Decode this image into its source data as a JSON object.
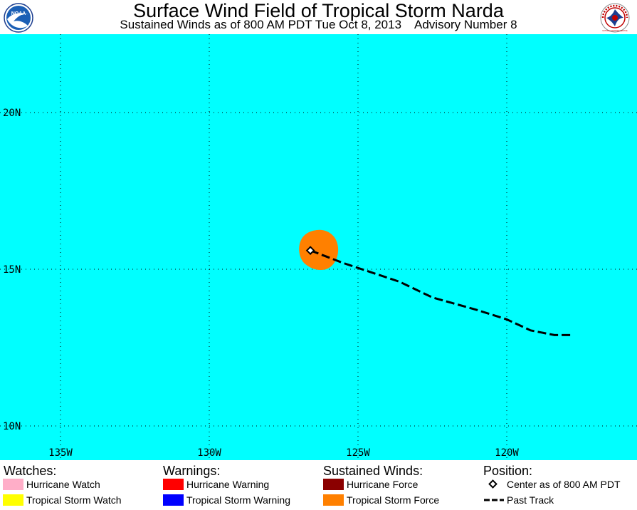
{
  "header": {
    "title": "Surface Wind Field of Tropical Storm Narda",
    "subtitle": "Sustained Winds as of 800 AM PDT Tue Oct 8, 2013    Advisory Number 8",
    "logo_left": "NOAA",
    "logo_right": "NATIONAL WEATHER SERVICE"
  },
  "map": {
    "ocean_color": "#00ffff",
    "storm_color": "#ff8000",
    "lon_labels": [
      "135W",
      "130W",
      "125W",
      "120W"
    ],
    "lat_labels": [
      "20N",
      "15N",
      "10N"
    ],
    "center": {
      "lon": -126.6,
      "lat": 15.6
    },
    "track": [
      {
        "lon": -126.6,
        "lat": 15.6
      },
      {
        "lon": -125.5,
        "lat": 15.2
      },
      {
        "lon": -123.6,
        "lat": 14.6
      },
      {
        "lon": -122.5,
        "lat": 14.1
      },
      {
        "lon": -121.0,
        "lat": 13.7
      },
      {
        "lon": -120.0,
        "lat": 13.4
      },
      {
        "lon": -119.2,
        "lat": 13.05
      },
      {
        "lon": -118.4,
        "lat": 12.9
      },
      {
        "lon": -117.8,
        "lat": 12.9
      }
    ]
  },
  "legend": {
    "watches": {
      "heading": "Watches:",
      "items": [
        {
          "label": "Hurricane Watch",
          "color": "#ffaec8"
        },
        {
          "label": "Tropical Storm Watch",
          "color": "#ffff00"
        }
      ]
    },
    "warnings": {
      "heading": "Warnings:",
      "items": [
        {
          "label": "Hurricane Warning",
          "color": "#ff0000"
        },
        {
          "label": "Tropical Storm Warning",
          "color": "#0000ff"
        }
      ]
    },
    "winds": {
      "heading": "Sustained Winds:",
      "items": [
        {
          "label": "Hurricane Force",
          "color": "#8b0000"
        },
        {
          "label": "Tropical Storm Force",
          "color": "#ff8000"
        }
      ]
    },
    "position": {
      "heading": "Position:",
      "items": [
        {
          "label": "Center as of 800 AM PDT",
          "icon": "diamond-icon"
        },
        {
          "label": "Past Track",
          "icon": "dashed-line-icon"
        }
      ]
    }
  }
}
